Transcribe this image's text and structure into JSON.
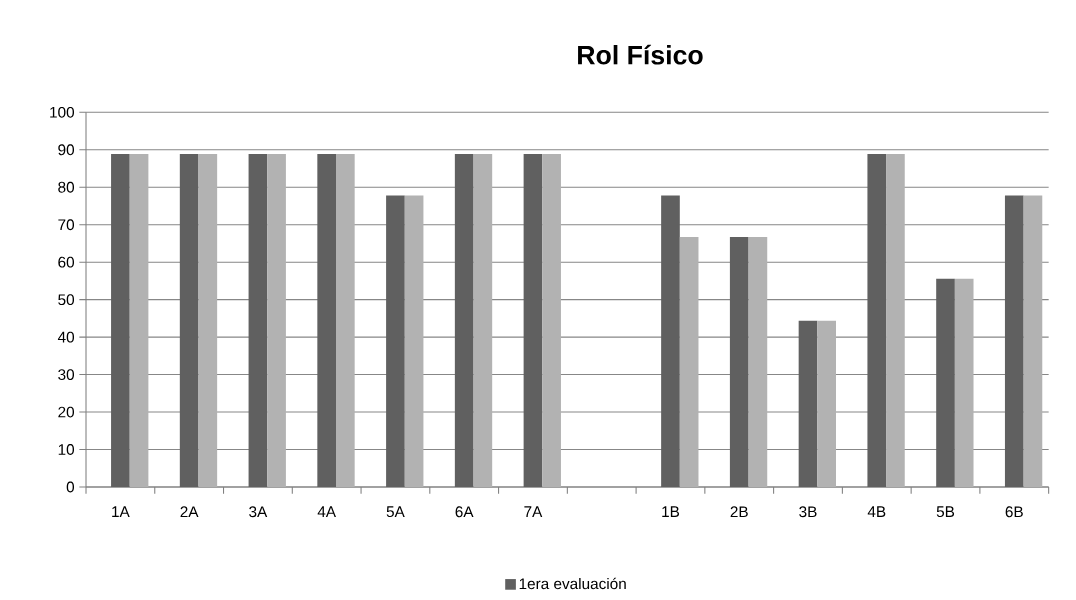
{
  "chart_data": {
    "type": "bar",
    "title": "Rol Físico",
    "categories": [
      "1A",
      "2A",
      "3A",
      "4A",
      "5A",
      "6A",
      "7A",
      null,
      "1B",
      "2B",
      "3B",
      "4B",
      "5B",
      "6B"
    ],
    "series": [
      {
        "name": "1era evaluación",
        "color": "#606060",
        "values": [
          88.9,
          88.9,
          88.9,
          88.9,
          77.8,
          88.9,
          88.9,
          null,
          77.8,
          66.7,
          44.4,
          88.9,
          55.6,
          77.8
        ]
      },
      {
        "color": "#b2b2b2",
        "values": [
          88.9,
          88.9,
          88.9,
          88.9,
          77.8,
          88.9,
          88.9,
          null,
          66.7,
          66.7,
          44.4,
          88.9,
          55.6,
          77.8
        ]
      }
    ],
    "ylim": [
      0,
      100
    ],
    "yticks": [
      0,
      10,
      20,
      30,
      40,
      50,
      60,
      70,
      80,
      90,
      100
    ],
    "grid": "y",
    "legend": "bottom"
  }
}
